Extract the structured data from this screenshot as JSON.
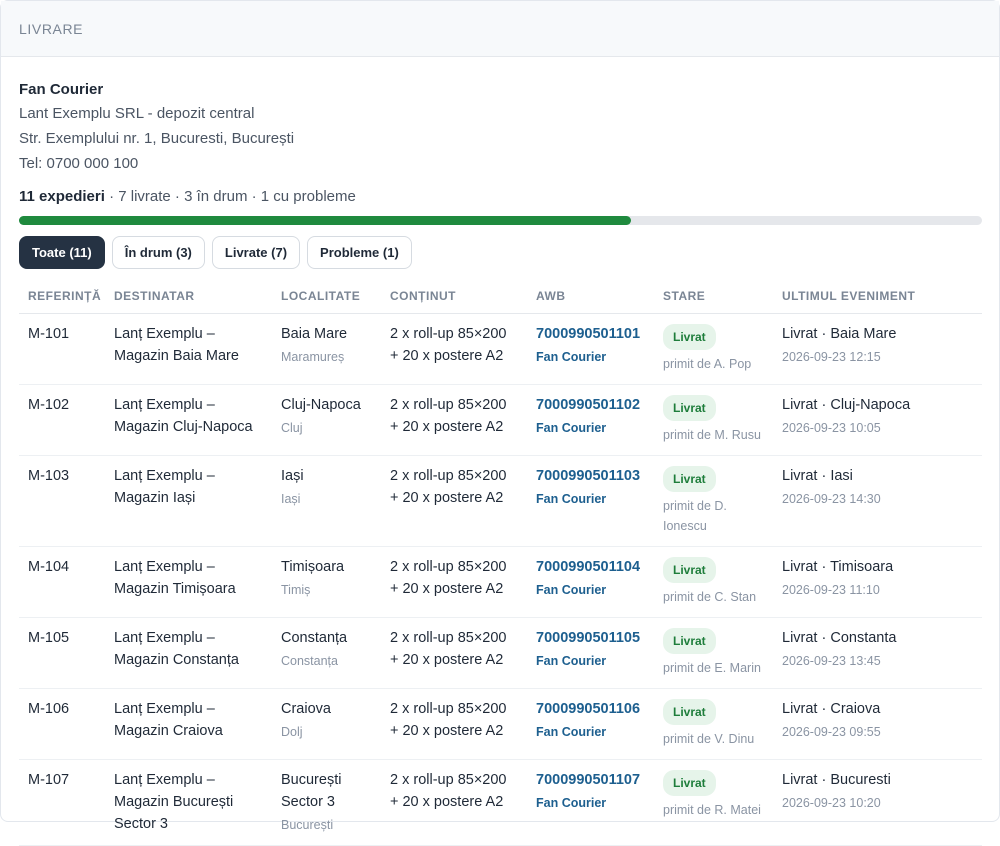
{
  "header": {
    "title": "LIVRARE"
  },
  "carrier": {
    "name": "Fan Courier",
    "company": "Lant Exemplu SRL - depozit central",
    "address": "Str. Exemplului nr. 1, Bucuresti, București",
    "phone": "Tel: 0700 000 100"
  },
  "summary": {
    "total": "11 expedieri",
    "details": " · 7 livrate · 3 în drum · 1 cu probleme",
    "progress_delivered_fraction": 0.636
  },
  "filters": [
    {
      "label": "Toate (11)",
      "active": true
    },
    {
      "label": "În drum (3)",
      "active": false
    },
    {
      "label": "Livrate (7)",
      "active": false
    },
    {
      "label": "Probleme (1)",
      "active": false
    }
  ],
  "table": {
    "columns": [
      "REFERINȚĂ",
      "DESTINATAR",
      "LOCALITATE",
      "CONȚINUT",
      "AWB",
      "STARE",
      "ULTIMUL EVENIMENT"
    ],
    "rows": [
      {
        "ref": "M-101",
        "dest": "Lanț Exemplu – Magazin Baia Mare",
        "city": "Baia Mare",
        "county": "Maramureș",
        "content": "2 x roll-up 85×200 + 20 x postere A2",
        "awb": "7000990501101",
        "awb_carrier": "Fan Courier",
        "status": "Livrat",
        "received": "primit de A. Pop",
        "event": "Livrat · Baia Mare",
        "event_time": "2026-09-23 12:15"
      },
      {
        "ref": "M-102",
        "dest": "Lanț Exemplu – Magazin Cluj-Napoca",
        "city": "Cluj-Napoca",
        "county": "Cluj",
        "content": "2 x roll-up 85×200 + 20 x postere A2",
        "awb": "7000990501102",
        "awb_carrier": "Fan Courier",
        "status": "Livrat",
        "received": "primit de M. Rusu",
        "event": "Livrat · Cluj-Napoca",
        "event_time": "2026-09-23 10:05"
      },
      {
        "ref": "M-103",
        "dest": "Lanț Exemplu – Magazin Iași",
        "city": "Iași",
        "county": "Iași",
        "content": "2 x roll-up 85×200 + 20 x postere A2",
        "awb": "7000990501103",
        "awb_carrier": "Fan Courier",
        "status": "Livrat",
        "received": "primit de D. Ionescu",
        "event": "Livrat · Iasi",
        "event_time": "2026-09-23 14:30"
      },
      {
        "ref": "M-104",
        "dest": "Lanț Exemplu – Magazin Timișoara",
        "city": "Timișoara",
        "county": "Timiș",
        "content": "2 x roll-up 85×200 + 20 x postere A2",
        "awb": "7000990501104",
        "awb_carrier": "Fan Courier",
        "status": "Livrat",
        "received": "primit de C. Stan",
        "event": "Livrat · Timisoara",
        "event_time": "2026-09-23 11:10"
      },
      {
        "ref": "M-105",
        "dest": "Lanț Exemplu – Magazin Constanța",
        "city": "Constanța",
        "county": "Constanța",
        "content": "2 x roll-up 85×200 + 20 x postere A2",
        "awb": "7000990501105",
        "awb_carrier": "Fan Courier",
        "status": "Livrat",
        "received": "primit de E. Marin",
        "event": "Livrat · Constanta",
        "event_time": "2026-09-23 13:45"
      },
      {
        "ref": "M-106",
        "dest": "Lanț Exemplu – Magazin Craiova",
        "city": "Craiova",
        "county": "Dolj",
        "content": "2 x roll-up 85×200 + 20 x postere A2",
        "awb": "7000990501106",
        "awb_carrier": "Fan Courier",
        "status": "Livrat",
        "received": "primit de V. Dinu",
        "event": "Livrat · Craiova",
        "event_time": "2026-09-23 09:55"
      },
      {
        "ref": "M-107",
        "dest": "Lanț Exemplu – Magazin București Sector 3",
        "city": "București Sector 3",
        "county": "București",
        "content": "2 x roll-up 85×200 + 20 x postere A2",
        "awb": "7000990501107",
        "awb_carrier": "Fan Courier",
        "status": "Livrat",
        "received": "primit de R. Matei",
        "event": "Livrat · Bucuresti",
        "event_time": "2026-09-23 10:20"
      }
    ]
  }
}
